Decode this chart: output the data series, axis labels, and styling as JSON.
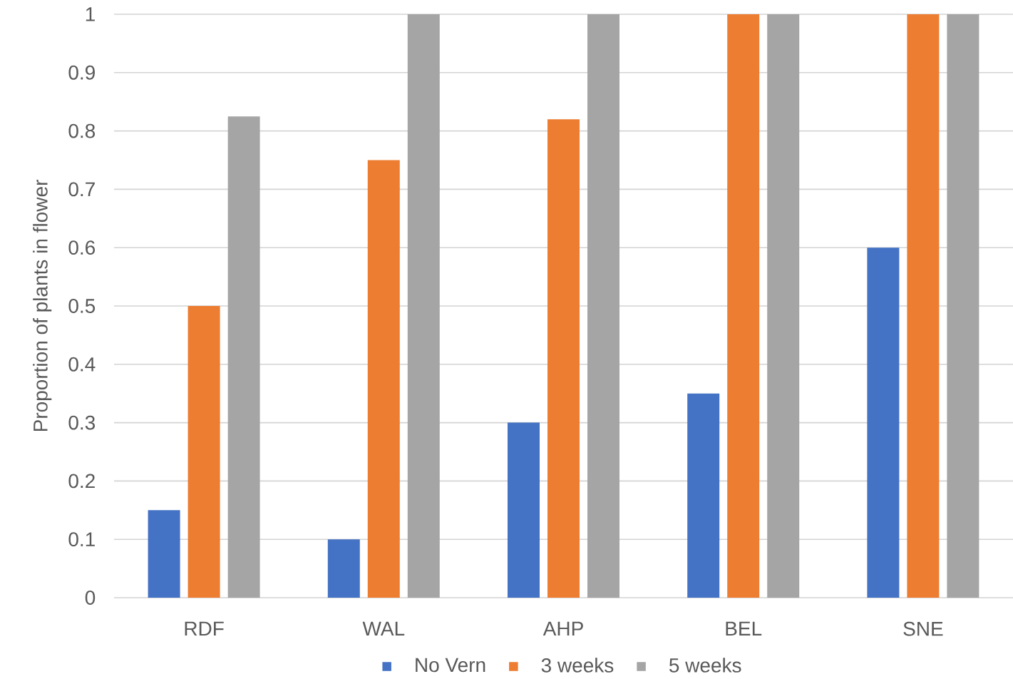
{
  "chart_data": {
    "type": "bar",
    "ylabel": "Proportion of plants in flower",
    "categories": [
      "RDF",
      "WAL",
      "AHP",
      "BEL",
      "SNE"
    ],
    "series": [
      {
        "name": "No Vern",
        "color": "#4472c4",
        "values": [
          0.15,
          0.1,
          0.3,
          0.35,
          0.6
        ]
      },
      {
        "name": "3 weeks",
        "color": "#ed7d31",
        "values": [
          0.5,
          0.75,
          0.82,
          1,
          1
        ]
      },
      {
        "name": "5 weeks",
        "color": "#a5a5a5",
        "values": [
          0.825,
          1,
          1,
          1,
          1
        ]
      }
    ],
    "ylim": [
      0,
      1
    ],
    "yticks": [
      0,
      0.1,
      0.2,
      0.3,
      0.4,
      0.5,
      0.6,
      0.7,
      0.8,
      0.9,
      1
    ],
    "grid": "y",
    "legend": "bottom"
  }
}
